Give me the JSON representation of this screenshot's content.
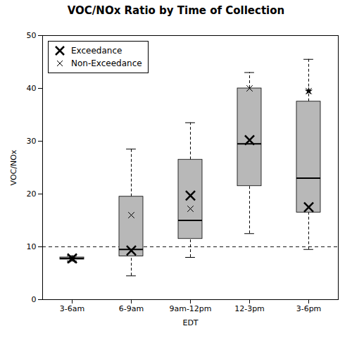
{
  "chart_data": {
    "type": "box",
    "title": "VOC/NOx Ratio by Time of Collection",
    "xlabel": "EDT",
    "ylabel": "VOC/NOx",
    "categories": [
      "3-6am",
      "6-9am",
      "9am-12pm",
      "12-3pm",
      "3-6pm"
    ],
    "boxes": [
      {
        "q1": 7.6,
        "median": 7.8,
        "q3": 8.0,
        "whislo": 7.3,
        "whishi": 8.3,
        "fliers": []
      },
      {
        "q1": 8.2,
        "median": 9.5,
        "q3": 19.5,
        "whislo": 4.5,
        "whishi": 28.5,
        "fliers": []
      },
      {
        "q1": 11.5,
        "median": 15.0,
        "q3": 26.5,
        "whislo": 8.0,
        "whishi": 33.5,
        "fliers": []
      },
      {
        "q1": 21.5,
        "median": 29.5,
        "q3": 40.0,
        "whislo": 12.5,
        "whishi": 43.0,
        "fliers": []
      },
      {
        "q1": 16.5,
        "median": 23.0,
        "q3": 37.5,
        "whislo": 9.5,
        "whishi": 45.5,
        "fliers": [
          39.5
        ]
      }
    ],
    "color": "#b8b8b8",
    "series": [
      {
        "name": "Exceedance",
        "marker": "x_bold",
        "values": [
          7.8,
          9.3,
          19.7,
          30.2,
          17.5
        ]
      },
      {
        "name": "Non-Exceedance",
        "marker": "x",
        "values": [
          7.5,
          16.0,
          17.2,
          40.0,
          39.5
        ]
      }
    ],
    "hline": 10,
    "ylim": [
      0,
      50
    ],
    "yticks": [
      0,
      10,
      20,
      30,
      40,
      50
    ],
    "grid": false,
    "legend": "upper left"
  }
}
